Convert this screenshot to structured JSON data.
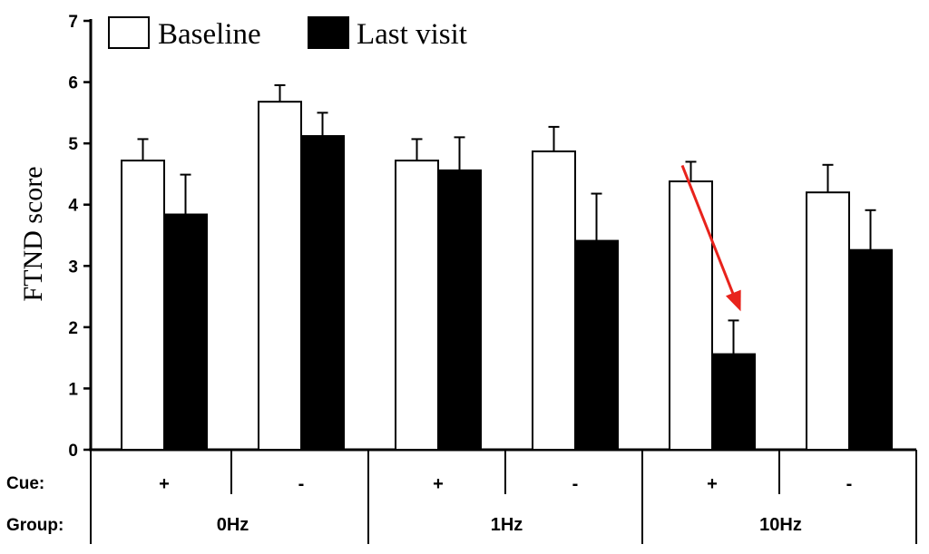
{
  "chart_data": {
    "type": "bar",
    "ylabel": "FTND score",
    "ylim": [
      0,
      7
    ],
    "yticks": [
      "0",
      "1",
      "2",
      "3",
      "4",
      "5",
      "6",
      "7"
    ],
    "legend_position": "top-left",
    "cue_row_label": "Cue:",
    "group_row_label": "Group:",
    "groups": [
      "0Hz",
      "1Hz",
      "10Hz"
    ],
    "cues": [
      "+",
      "-",
      "+",
      "-",
      "+",
      "-"
    ],
    "series": [
      {
        "name": "Baseline",
        "values": [
          4.72,
          5.68,
          4.72,
          4.87,
          4.38,
          4.2
        ],
        "errors": [
          0.35,
          0.27,
          0.35,
          0.4,
          0.32,
          0.45
        ],
        "fill": "#ffffff"
      },
      {
        "name": "Last visit",
        "values": [
          3.84,
          5.12,
          4.56,
          3.41,
          1.56,
          3.26
        ],
        "errors": [
          0.65,
          0.38,
          0.54,
          0.77,
          0.55,
          0.65
        ],
        "fill": "#000000"
      }
    ],
    "annotation": {
      "type": "arrow",
      "color": "#e8231c",
      "from_bar": [
        4,
        0
      ],
      "to_bar": [
        4,
        1
      ]
    },
    "grid": false
  }
}
